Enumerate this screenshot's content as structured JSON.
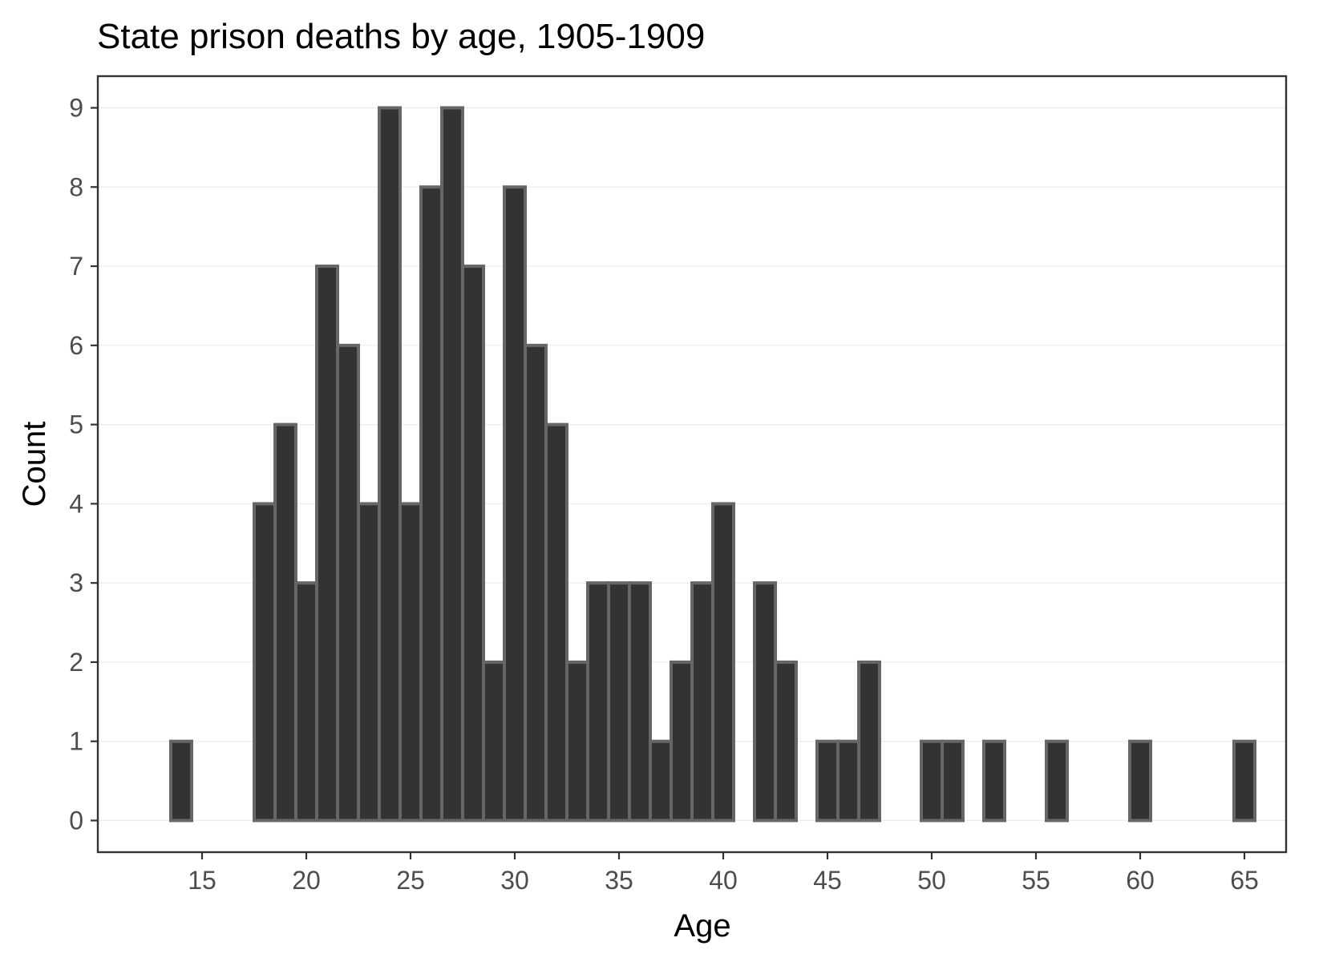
{
  "chart_data": {
    "type": "bar",
    "title": "State prison deaths by age, 1905-1909",
    "xlabel": "Age",
    "ylabel": "Count",
    "x": [
      14,
      18,
      19,
      20,
      21,
      22,
      23,
      24,
      25,
      26,
      27,
      28,
      29,
      30,
      31,
      32,
      33,
      34,
      35,
      36,
      37,
      38,
      39,
      40,
      42,
      43,
      45,
      46,
      47,
      50,
      51,
      53,
      56,
      60,
      65
    ],
    "values": [
      1,
      4,
      5,
      3,
      7,
      6,
      4,
      9,
      4,
      8,
      9,
      7,
      2,
      8,
      6,
      5,
      2,
      3,
      3,
      3,
      1,
      2,
      3,
      4,
      3,
      2,
      1,
      1,
      2,
      1,
      1,
      1,
      1,
      1,
      1
    ],
    "xlim": [
      10,
      67
    ],
    "ylim": [
      -0.4,
      9.4
    ],
    "xticks": [
      "15",
      "20",
      "25",
      "30",
      "35",
      "40",
      "45",
      "50",
      "55",
      "60",
      "65"
    ],
    "yticks": [
      "0",
      "1",
      "2",
      "3",
      "4",
      "5",
      "6",
      "7",
      "8",
      "9"
    ],
    "grid": true,
    "colors": {
      "bar_fill": "#333333",
      "bar_outline": "#666666"
    }
  }
}
